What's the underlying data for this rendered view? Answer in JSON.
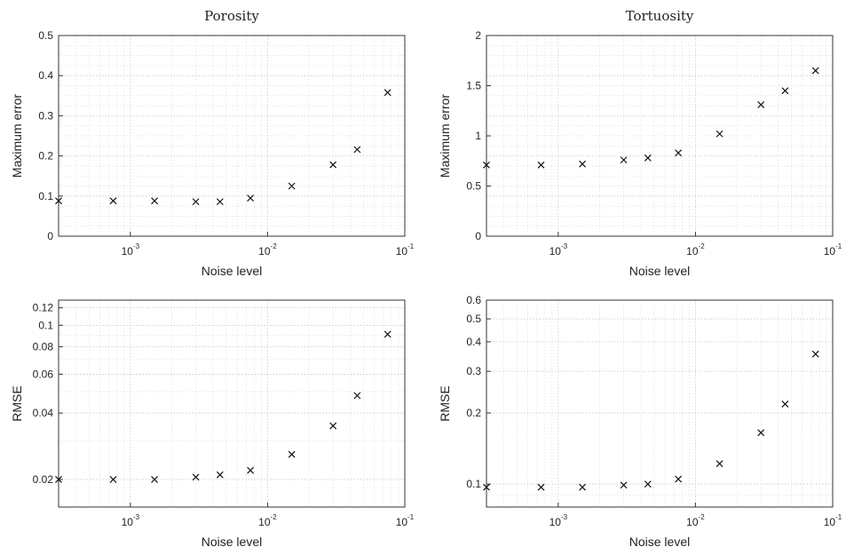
{
  "chart_data": [
    {
      "type": "scatter",
      "title": "Porosity",
      "xlabel": "Noise level",
      "ylabel": "Maximum error",
      "xscale": "log",
      "yscale": "linear",
      "xlim": [
        0.0003,
        0.1
      ],
      "ylim": [
        0,
        0.5
      ],
      "grid": true,
      "marker": "x",
      "x": [
        0.0003,
        0.00075,
        0.0015,
        0.003,
        0.0045,
        0.0075,
        0.015,
        0.03,
        0.045,
        0.075
      ],
      "y": [
        0.088,
        0.088,
        0.088,
        0.086,
        0.086,
        0.095,
        0.125,
        0.178,
        0.216,
        0.358
      ],
      "xticks": [
        {
          "value": 0.001,
          "base": "10",
          "exp": "-3"
        },
        {
          "value": 0.01,
          "base": "10",
          "exp": "-2"
        },
        {
          "value": 0.1,
          "base": "10",
          "exp": "-1"
        }
      ],
      "yticks": [
        {
          "value": 0,
          "label": "0"
        },
        {
          "value": 0.1,
          "label": "0.1"
        },
        {
          "value": 0.2,
          "label": "0.2"
        },
        {
          "value": 0.3,
          "label": "0.3"
        },
        {
          "value": 0.4,
          "label": "0.4"
        },
        {
          "value": 0.5,
          "label": "0.5"
        }
      ]
    },
    {
      "type": "scatter",
      "title": "Tortuosity",
      "xlabel": "Noise level",
      "ylabel": "Maximum error",
      "xscale": "log",
      "yscale": "linear",
      "xlim": [
        0.0003,
        0.1
      ],
      "ylim": [
        0,
        2
      ],
      "grid": true,
      "marker": "x",
      "x": [
        0.0003,
        0.00075,
        0.0015,
        0.003,
        0.0045,
        0.0075,
        0.015,
        0.03,
        0.045,
        0.075
      ],
      "y": [
        0.71,
        0.71,
        0.72,
        0.76,
        0.78,
        0.83,
        1.02,
        1.31,
        1.45,
        1.65
      ],
      "xticks": [
        {
          "value": 0.001,
          "base": "10",
          "exp": "-3"
        },
        {
          "value": 0.01,
          "base": "10",
          "exp": "-2"
        },
        {
          "value": 0.1,
          "base": "10",
          "exp": "-1"
        }
      ],
      "yticks": [
        {
          "value": 0,
          "label": "0"
        },
        {
          "value": 0.5,
          "label": "0.5"
        },
        {
          "value": 1,
          "label": "1"
        },
        {
          "value": 1.5,
          "label": "1.5"
        },
        {
          "value": 2,
          "label": "2"
        }
      ]
    },
    {
      "type": "scatter",
      "title": "",
      "xlabel": "Noise level",
      "ylabel": "RMSE",
      "xscale": "log",
      "yscale": "log",
      "xlim": [
        0.0003,
        0.1
      ],
      "ylim": [
        0.015,
        0.13
      ],
      "grid": true,
      "marker": "x",
      "x": [
        0.0003,
        0.00075,
        0.0015,
        0.003,
        0.0045,
        0.0075,
        0.015,
        0.03,
        0.045,
        0.075
      ],
      "y": [
        0.02,
        0.02,
        0.02,
        0.0205,
        0.021,
        0.022,
        0.026,
        0.035,
        0.048,
        0.091
      ],
      "xticks": [
        {
          "value": 0.001,
          "base": "10",
          "exp": "-3"
        },
        {
          "value": 0.01,
          "base": "10",
          "exp": "-2"
        },
        {
          "value": 0.1,
          "base": "10",
          "exp": "-1"
        }
      ],
      "yticks": [
        {
          "value": 0.02,
          "label": "0.02"
        },
        {
          "value": 0.04,
          "label": "0.04"
        },
        {
          "value": 0.06,
          "label": "0.06"
        },
        {
          "value": 0.08,
          "label": "0.08"
        },
        {
          "value": 0.1,
          "label": "0.1"
        },
        {
          "value": 0.12,
          "label": "0.12"
        }
      ]
    },
    {
      "type": "scatter",
      "title": "",
      "xlabel": "Noise level",
      "ylabel": "RMSE",
      "xscale": "log",
      "yscale": "log",
      "xlim": [
        0.0003,
        0.1
      ],
      "ylim": [
        0.08,
        0.6
      ],
      "grid": true,
      "marker": "x",
      "x": [
        0.0003,
        0.00075,
        0.0015,
        0.003,
        0.0045,
        0.0075,
        0.015,
        0.03,
        0.045,
        0.075
      ],
      "y": [
        0.097,
        0.097,
        0.097,
        0.099,
        0.1,
        0.105,
        0.122,
        0.165,
        0.218,
        0.355
      ],
      "xticks": [
        {
          "value": 0.001,
          "base": "10",
          "exp": "-3"
        },
        {
          "value": 0.01,
          "base": "10",
          "exp": "-2"
        },
        {
          "value": 0.1,
          "base": "10",
          "exp": "-1"
        }
      ],
      "yticks": [
        {
          "value": 0.1,
          "label": "0.1"
        },
        {
          "value": 0.2,
          "label": "0.2"
        },
        {
          "value": 0.3,
          "label": "0.3"
        },
        {
          "value": 0.4,
          "label": "0.4"
        },
        {
          "value": 0.5,
          "label": "0.5"
        },
        {
          "value": 0.6,
          "label": "0.6"
        }
      ]
    }
  ]
}
